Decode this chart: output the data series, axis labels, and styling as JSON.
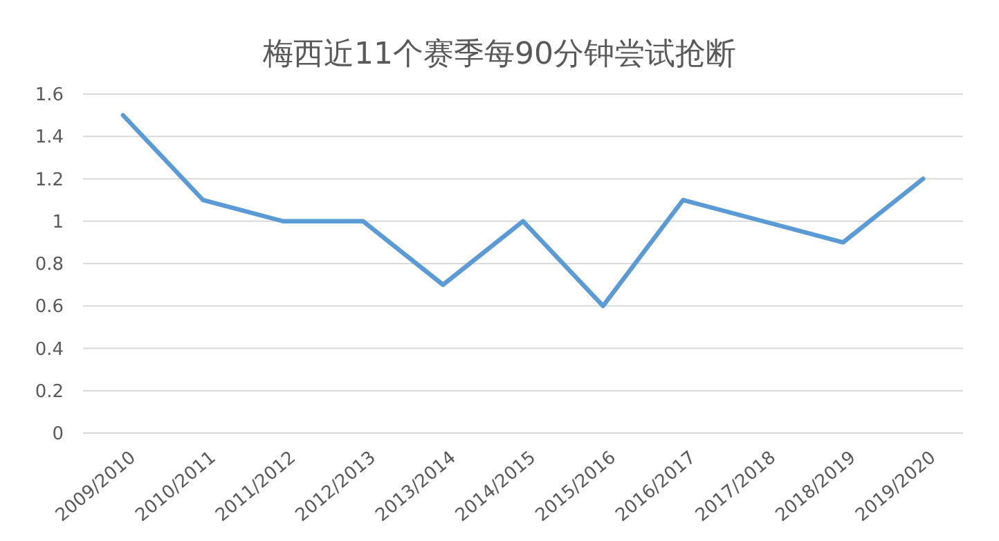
{
  "chart_data": {
    "type": "line",
    "title": "梅西近11个赛季每90分钟尝试抢断",
    "categories": [
      "2009/2010",
      "2010/2011",
      "2011/2012",
      "2012/2013",
      "2013/2014",
      "2014/2015",
      "2015/2016",
      "2016/2017",
      "2017/2018",
      "2018/2019",
      "2019/2020"
    ],
    "series": [
      {
        "color": "#5b9bd5",
        "values": [
          1.5,
          1.1,
          1.0,
          1.0,
          0.7,
          1.0,
          0.6,
          1.1,
          1.0,
          0.9,
          1.2
        ]
      }
    ],
    "ylim": [
      0,
      1.6
    ],
    "yticks": [
      0,
      0.2,
      0.4,
      0.6,
      0.8,
      1,
      1.2,
      1.4,
      1.6
    ],
    "grid": "y",
    "marker": "none",
    "line_style": "solid"
  }
}
